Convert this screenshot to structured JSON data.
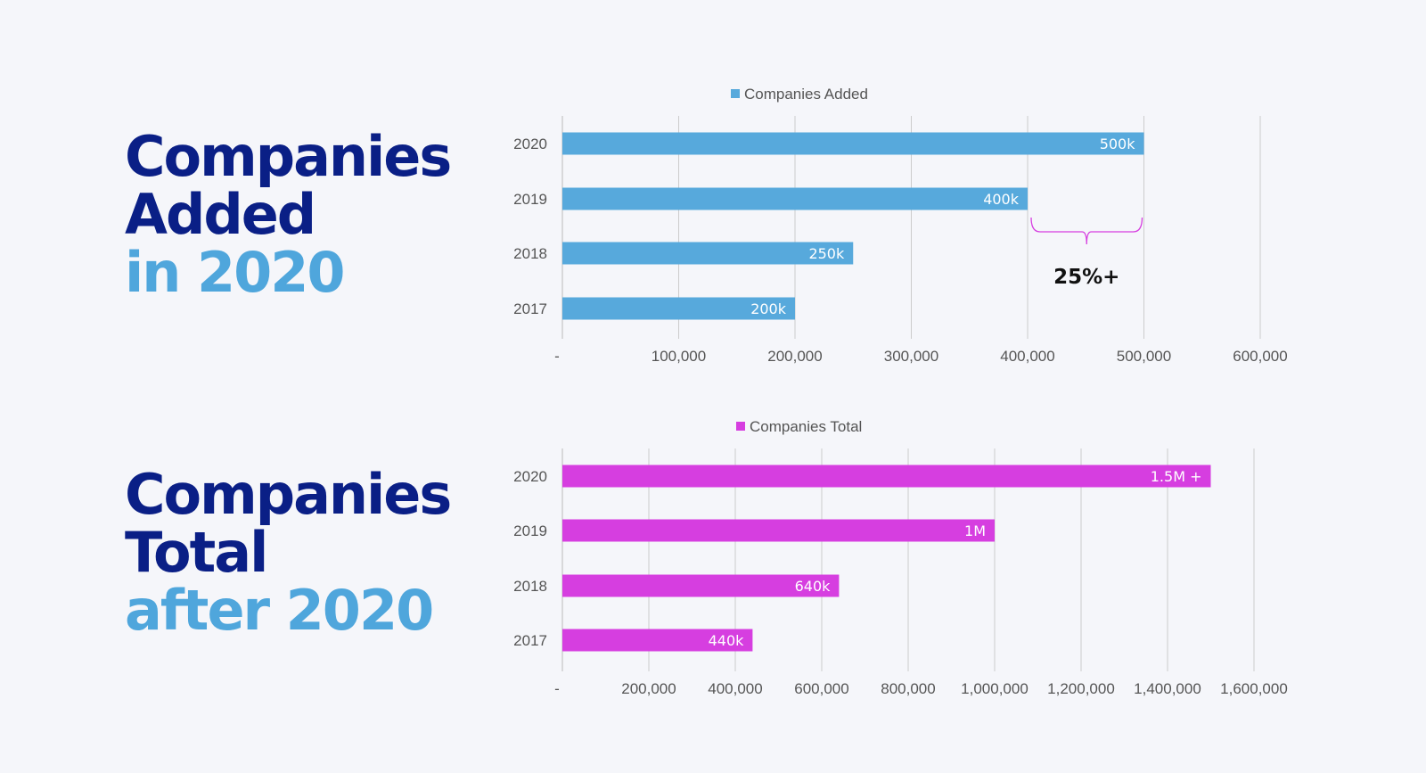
{
  "headline1": {
    "line1": "Companies",
    "line2": "Added",
    "line3": "in 2020"
  },
  "headline2": {
    "line1": "Companies",
    "line2": "Total",
    "line3": "after 2020"
  },
  "colors": {
    "dark": "#0a1f86",
    "light": "#4fa6dc",
    "bar1": "#57a9dc",
    "bar2": "#d63ee0",
    "grid": "#cccccc",
    "brace": "#d63ee0"
  },
  "chart_data": [
    {
      "type": "bar",
      "orientation": "horizontal",
      "legend": "Companies Added",
      "legend_position": "top",
      "categories": [
        "2020",
        "2019",
        "2018",
        "2017"
      ],
      "values": [
        500000,
        400000,
        250000,
        200000
      ],
      "data_labels": [
        "500k",
        "400k",
        "250k",
        "200k"
      ],
      "xlim": [
        0,
        600000
      ],
      "ticks": [
        0,
        100000,
        200000,
        300000,
        400000,
        500000,
        600000
      ],
      "tick_labels": [
        "-",
        "100,000",
        "200,000",
        "300,000",
        "400,000",
        "500,000",
        "600,000"
      ],
      "grid": true,
      "annotation": {
        "text": "25%+",
        "from": 400000,
        "to": 500000
      }
    },
    {
      "type": "bar",
      "orientation": "horizontal",
      "legend": "Companies Total",
      "legend_position": "top",
      "categories": [
        "2020",
        "2019",
        "2018",
        "2017"
      ],
      "values": [
        1500000,
        1000000,
        640000,
        440000
      ],
      "data_labels": [
        "1.5M +",
        "1M",
        "640k",
        "440k"
      ],
      "xlim": [
        0,
        1600000
      ],
      "ticks": [
        0,
        200000,
        400000,
        600000,
        800000,
        1000000,
        1200000,
        1400000,
        1600000
      ],
      "tick_labels": [
        "-",
        "200,000",
        "400,000",
        "600,000",
        "800,000",
        "1,000,000",
        "1,200,000",
        "1,400,000",
        "1,600,000"
      ],
      "grid": true
    }
  ]
}
